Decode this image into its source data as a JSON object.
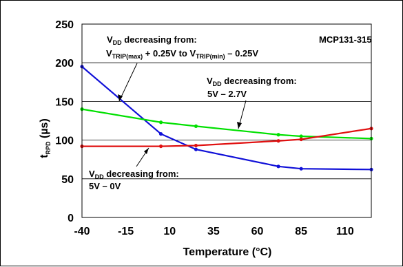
{
  "chart_data": {
    "type": "line",
    "title": "",
    "xlabel": "Temperature (°C)",
    "ylabel_main": "t",
    "ylabel_sub": "RPD",
    "ylabel_unit": " (µs)",
    "xlim": [
      -40,
      125
    ],
    "ylim": [
      0,
      250
    ],
    "xticks": [
      -40,
      -15,
      10,
      35,
      60,
      85,
      110
    ],
    "yticks": [
      0,
      50,
      100,
      150,
      200,
      250
    ],
    "grid": "horizontal",
    "series": [
      {
        "color": "#1010d8",
        "x": [
          -40,
          5,
          25,
          72,
          85,
          125
        ],
        "y": [
          195,
          108,
          88,
          66,
          63,
          62
        ]
      },
      {
        "color": "#00e000",
        "x": [
          -40,
          5,
          25,
          72,
          85,
          125
        ],
        "y": [
          140,
          123,
          118,
          107,
          105,
          102
        ]
      },
      {
        "color": "#e01010",
        "x": [
          -40,
          5,
          25,
          72,
          85,
          125
        ],
        "y": [
          92,
          92,
          93,
          99,
          101,
          115
        ]
      }
    ],
    "annotations": {
      "device": "MCP131-315",
      "blue_line1": {
        "pre": "V",
        "sub": "DD",
        "post": " decreasing from:"
      },
      "blue_line2": [
        {
          "t": "V"
        },
        {
          "t": "TRIP(max)",
          "sub": true
        },
        {
          "t": " + 0.25V to V"
        },
        {
          "t": "TRIP(min)",
          "sub": true
        },
        {
          "t": " – 0.25V"
        }
      ],
      "green_line1": {
        "pre": "V",
        "sub": "DD",
        "post": " decreasing from:"
      },
      "green_line2": "5V – 2.7V",
      "red_line1": {
        "pre": "V",
        "sub": "DD",
        "post": " decreasing from:"
      },
      "red_line2": "5V – 0V"
    }
  }
}
